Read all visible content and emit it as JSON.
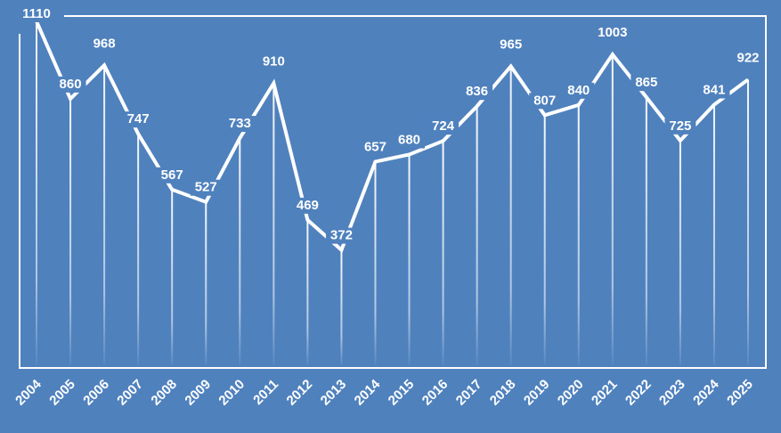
{
  "chart_data": {
    "type": "line",
    "title": "",
    "xlabel": "",
    "ylabel": "",
    "categories": [
      "2004",
      "2005",
      "2006",
      "2007",
      "2008",
      "2009",
      "2010",
      "2011",
      "2012",
      "2013",
      "2014",
      "2015",
      "2016",
      "2017",
      "2018",
      "2019",
      "2020",
      "2021",
      "2022",
      "2023",
      "2024",
      "2025"
    ],
    "series": [
      {
        "values": [
          1110,
          860,
          968,
          747,
          567,
          527,
          733,
          910,
          469,
          372,
          657,
          680,
          724,
          836,
          965,
          807,
          840,
          1003,
          865,
          725,
          841,
          922
        ]
      }
    ],
    "ylim": [
      0,
      1150
    ],
    "grid": false,
    "legend": "none",
    "data_labels": true,
    "drop_lines": true,
    "colors": {
      "background": "#4f81bd",
      "line": "#ffffff",
      "text": "#ffffff",
      "frame": "#ffffff"
    }
  }
}
